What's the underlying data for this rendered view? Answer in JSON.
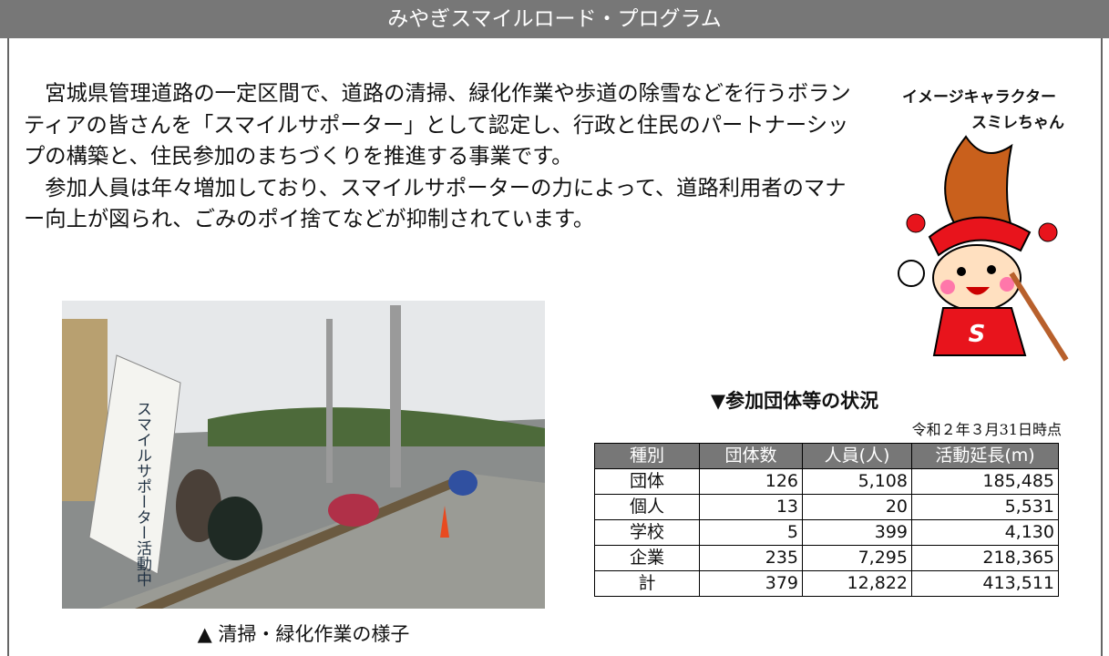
{
  "header": {
    "title": "みやぎスマイルロード・プログラム"
  },
  "body": {
    "paragraphs": [
      "宮城県管理道路の一定区間で、道路の清掃、緑化作業や歩道の除雪などを行うボランティアの皆さんを「スマイルサポーター」として認定し、行政と住民のパートナーシップの構築と、住民参加のまちづくりを推進する事業です。",
      "参加人員は年々増加しており、スマイルサポーターの力によって、道路利用者のマナー向上が図られ、ごみのポイ捨てなどが抑制されています。"
    ]
  },
  "character": {
    "caption": [
      "イメージキャラクター",
      "スミレちゃん"
    ]
  },
  "photo": {
    "flag": "スマイルサポーター活動中",
    "caption": "▲ 清掃・緑化作業の様子"
  },
  "table": {
    "title": "▼参加団体等の状況",
    "date": "令和２年３月31日時点",
    "columns": [
      "種別",
      "団体数",
      "人員(人)",
      "活動延長(m)"
    ],
    "rows": [
      [
        "団体",
        "126",
        "5,108",
        "185,485"
      ],
      [
        "個人",
        "13",
        "20",
        "5,531"
      ],
      [
        "学校",
        "5",
        "399",
        "4,130"
      ],
      [
        "企業",
        "235",
        "7,295",
        "218,365"
      ],
      [
        "計",
        "379",
        "12,822",
        "413,511"
      ]
    ]
  }
}
